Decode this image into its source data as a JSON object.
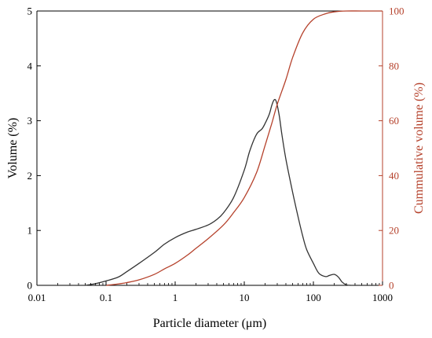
{
  "chart_data": {
    "type": "line",
    "title": "",
    "xlabel": "Particle diameter (μm)",
    "ylabel": "Volume (%)",
    "y2label": "Cummulative volume (%)",
    "xscale": "log",
    "xlim": [
      0.01,
      1000
    ],
    "ylim": [
      0,
      5
    ],
    "y2lim": [
      0,
      100
    ],
    "grid": false,
    "xticks": [
      0.01,
      0.1,
      1,
      10,
      100,
      1000
    ],
    "xtick_labels": [
      "0.01",
      "0.1",
      "1",
      "10",
      "100",
      "1000"
    ],
    "yticks": [
      0,
      1,
      2,
      3,
      4,
      5
    ],
    "ytick_labels": [
      "0",
      "1",
      "2",
      "3",
      "4",
      "5"
    ],
    "y2ticks": [
      0,
      20,
      40,
      60,
      80,
      100
    ],
    "y2tick_labels": [
      "0",
      "20",
      "40",
      "60",
      "80",
      "100"
    ],
    "colors": {
      "frequency": "#333333",
      "cumulative": "#b5412b",
      "left_axis": "#000000",
      "right_axis": "#b5412b"
    },
    "series": [
      {
        "axis": "left",
        "x": [
          0.05,
          0.07,
          0.1,
          0.15,
          0.2,
          0.3,
          0.5,
          0.7,
          1,
          1.5,
          2,
          3,
          4,
          5,
          7,
          10,
          12,
          15,
          18,
          20,
          23,
          25,
          27,
          29,
          32,
          35,
          40,
          50,
          60,
          70,
          80,
          100,
          120,
          150,
          170,
          200,
          230,
          260,
          300,
          350
        ],
        "values": [
          0.0,
          0.03,
          0.08,
          0.15,
          0.25,
          0.4,
          0.6,
          0.75,
          0.87,
          0.97,
          1.02,
          1.1,
          1.2,
          1.32,
          1.6,
          2.1,
          2.45,
          2.75,
          2.85,
          2.95,
          3.12,
          3.28,
          3.38,
          3.35,
          3.1,
          2.75,
          2.3,
          1.7,
          1.25,
          0.9,
          0.65,
          0.4,
          0.22,
          0.16,
          0.18,
          0.2,
          0.15,
          0.06,
          0.01,
          0.0
        ]
      },
      {
        "axis": "right",
        "x": [
          0.1,
          0.15,
          0.2,
          0.3,
          0.5,
          0.7,
          1,
          1.5,
          2,
          3,
          5,
          7,
          10,
          15,
          20,
          25,
          30,
          40,
          50,
          70,
          100,
          150,
          200,
          300,
          500,
          1000
        ],
        "values": [
          0.0,
          0.5,
          1.0,
          2.0,
          4.0,
          6.0,
          8.0,
          11.0,
          13.5,
          17.0,
          22.0,
          26.5,
          32.0,
          41.0,
          51.0,
          59.0,
          66.0,
          75.0,
          83.0,
          92.0,
          97.0,
          99.0,
          99.7,
          100.0,
          100.0,
          100.0
        ]
      }
    ]
  }
}
